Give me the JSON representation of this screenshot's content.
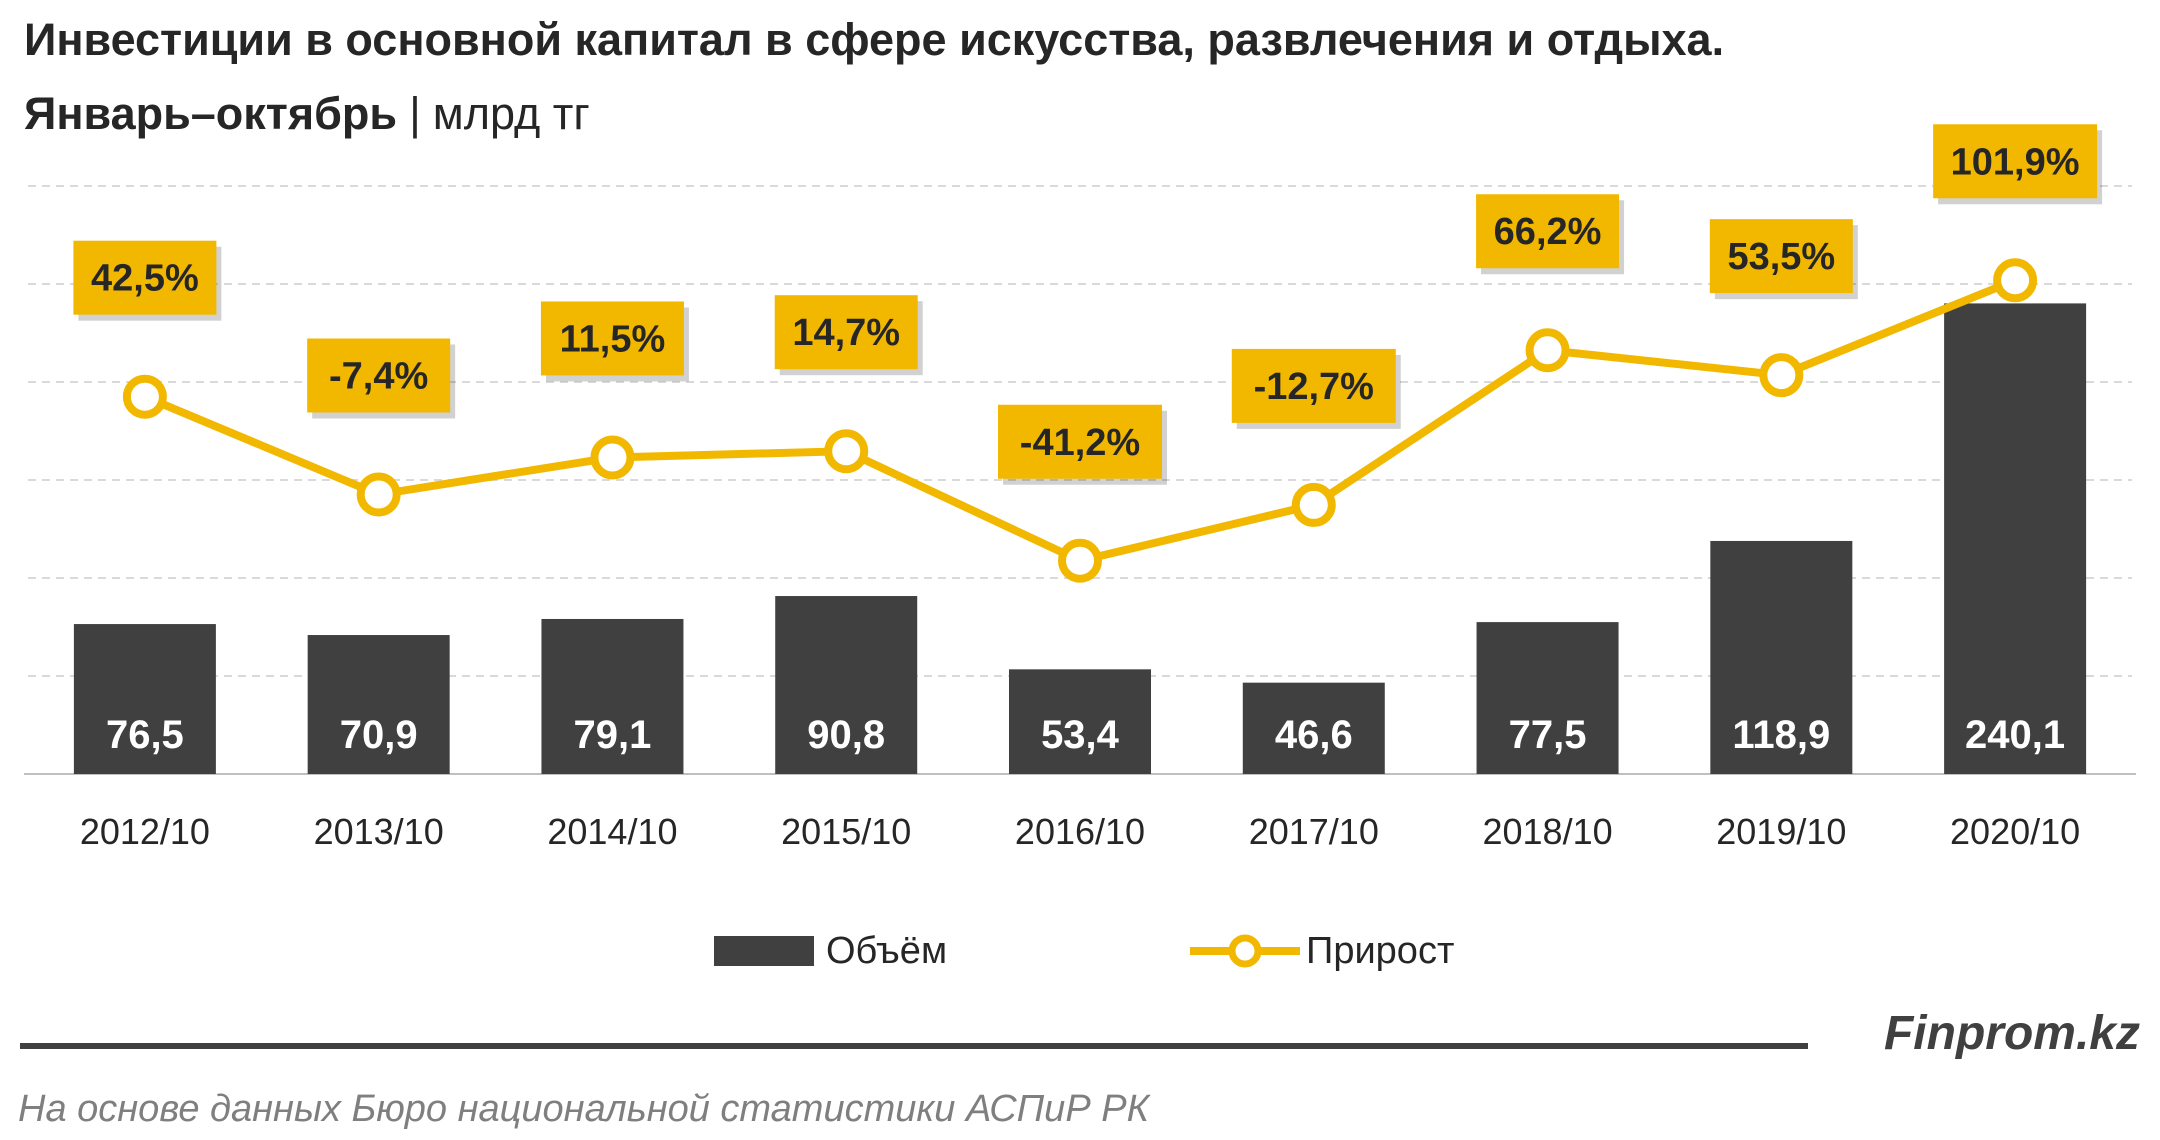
{
  "title": "Инвестиции в основной капитал в сфере искусства, развлечения и отдыха.",
  "subtitle": {
    "period": "Январь–октябрь",
    "separator": "|",
    "unit": "млрд тг"
  },
  "brand": "Finprom.kz",
  "source": "На основе данных Бюро национальной статистики АСПиР РК",
  "colors": {
    "bar": "#404040",
    "line": "#F2B800",
    "label_box": "#F2B800",
    "grid": "#D9D9D9"
  },
  "chart_data": {
    "type": "bar",
    "categories": [
      "2012/10",
      "2013/10",
      "2014/10",
      "2015/10",
      "2016/10",
      "2017/10",
      "2018/10",
      "2019/10",
      "2020/10"
    ],
    "series": [
      {
        "name": "Объём",
        "type": "bar",
        "values": [
          76.5,
          70.9,
          79.1,
          90.8,
          53.4,
          46.6,
          77.5,
          118.9,
          240.1
        ],
        "labels": [
          "76,5",
          "70,9",
          "79,1",
          "90,8",
          "53,4",
          "46,6",
          "77,5",
          "118,9",
          "240,1"
        ]
      },
      {
        "name": "Прирост",
        "type": "line",
        "axis": "secondary",
        "values": [
          42.5,
          -7.4,
          11.5,
          14.7,
          -41.2,
          -12.7,
          66.2,
          53.5,
          101.9
        ],
        "labels": [
          "42,5%",
          "-7,4%",
          "11,5%",
          "14,7%",
          "-41,2%",
          "-12,7%",
          "66,2%",
          "53,5%",
          "101,9%"
        ]
      }
    ],
    "ylim": [
      0,
      300
    ],
    "y2lim": [
      -150,
      150
    ],
    "grid": true,
    "legend": "bottom-center"
  }
}
